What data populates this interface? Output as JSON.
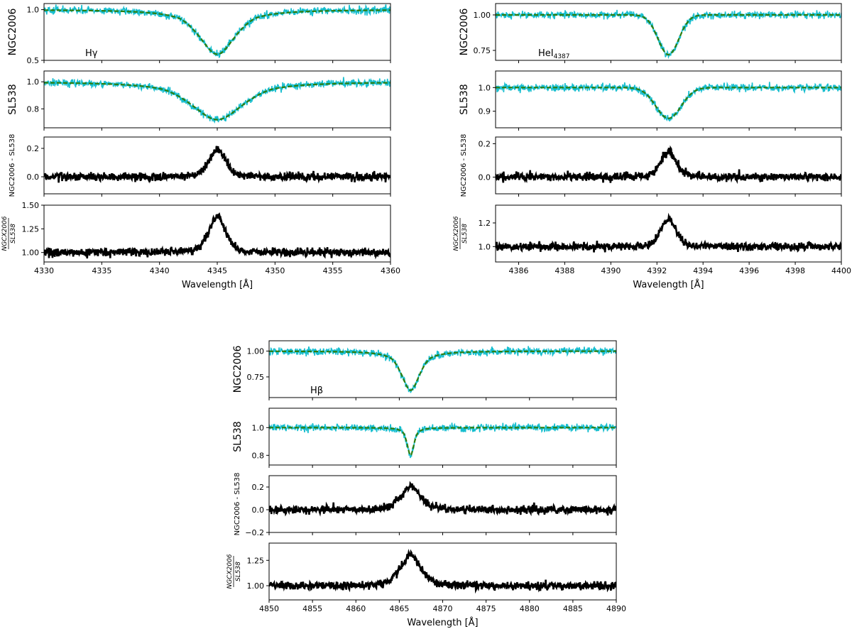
{
  "colors": {
    "observed": "#17becf",
    "model": "#2e7d0e",
    "residual": "#000000"
  },
  "chart_data": [
    {
      "type": "line",
      "line_label": "Hγ",
      "line_center": 4345.0,
      "xlim": [
        4330,
        4360
      ],
      "xticks": [
        "4330",
        "4335",
        "4340",
        "4345",
        "4350",
        "4355",
        "4360"
      ],
      "xlabel": "Wavelength [Å]",
      "panels": [
        {
          "ylabel": "NGC2006",
          "ylim": [
            0.5,
            1.06
          ],
          "yticks": [
            "0.5",
            "1.0"
          ],
          "series": [
            {
              "kind": "observed"
            },
            {
              "kind": "model"
            }
          ],
          "depth": 0.44,
          "width": 1.8
        },
        {
          "ylabel": "SL538",
          "ylim": [
            0.66,
            1.08
          ],
          "yticks": [
            "0.8",
            "1.0"
          ],
          "series": [
            {
              "kind": "observed"
            },
            {
              "kind": "model"
            }
          ],
          "depth": 0.28,
          "width": 2.6
        },
        {
          "ylabel": "NGC2006 - SL538",
          "ylim": [
            -0.12,
            0.28
          ],
          "yticks": [
            "0.0",
            "0.2"
          ],
          "series": [
            {
              "kind": "residual"
            }
          ],
          "peak": 0.19
        },
        {
          "ylabel": "NGCX2006 / SL538",
          "ylim": [
            0.9,
            1.5
          ],
          "yticks": [
            "1.00",
            "1.25",
            "1.50"
          ],
          "series": [
            {
              "kind": "residual"
            }
          ],
          "peak": 0.38
        }
      ]
    },
    {
      "type": "line",
      "line_label": "HeI",
      "line_label_sub": "4387",
      "line_center": 4392.5,
      "xlim": [
        4385,
        4400
      ],
      "xticks": [
        "4386",
        "4388",
        "4390",
        "4392",
        "4394",
        "4396",
        "4398",
        "4400"
      ],
      "xlabel": "Wavelength [Å]",
      "panels": [
        {
          "ylabel": "NGC2006",
          "ylim": [
            0.68,
            1.08
          ],
          "yticks": [
            "0.75",
            "1.00"
          ],
          "series": [
            {
              "kind": "observed"
            },
            {
              "kind": "model"
            }
          ],
          "depth": 0.28,
          "width": 0.45
        },
        {
          "ylabel": "SL538",
          "ylim": [
            0.83,
            1.07
          ],
          "yticks": [
            "0.9",
            "1.0"
          ],
          "series": [
            {
              "kind": "observed"
            },
            {
              "kind": "model"
            }
          ],
          "depth": 0.13,
          "width": 0.55
        },
        {
          "ylabel": "NGC2006 - SL538",
          "ylim": [
            -0.1,
            0.24
          ],
          "yticks": [
            "0.0",
            "0.2"
          ],
          "series": [
            {
              "kind": "residual"
            }
          ],
          "peak": 0.16
        },
        {
          "ylabel": "NGCX2006 / SL538",
          "ylim": [
            0.87,
            1.35
          ],
          "yticks": [
            "1.0",
            "1.2"
          ],
          "series": [
            {
              "kind": "residual"
            }
          ],
          "peak": 0.24
        }
      ]
    },
    {
      "type": "line",
      "line_label": "Hβ",
      "line_center": 4866.3,
      "xlim": [
        4850,
        4890
      ],
      "xticks": [
        "4850",
        "4855",
        "4860",
        "4865",
        "4870",
        "4875",
        "4880",
        "4885",
        "4890"
      ],
      "xlabel": "Wavelength [Å]",
      "panels": [
        {
          "ylabel": "NGC2006",
          "ylim": [
            0.55,
            1.1
          ],
          "yticks": [
            "0.75",
            "1.00"
          ],
          "series": [
            {
              "kind": "observed"
            },
            {
              "kind": "model"
            }
          ],
          "depth": 0.38,
          "width": 1.2
        },
        {
          "ylabel": "SL538",
          "ylim": [
            0.73,
            1.14
          ],
          "yticks": [
            "0.8",
            "1.0"
          ],
          "series": [
            {
              "kind": "observed"
            },
            {
              "kind": "model"
            }
          ],
          "depth": 0.2,
          "width": 0.45
        },
        {
          "ylabel": "NGC2006 - SL538",
          "ylim": [
            -0.2,
            0.3
          ],
          "yticks": [
            "−0.2",
            "0.0",
            "0.2"
          ],
          "series": [
            {
              "kind": "residual"
            }
          ],
          "peak": 0.2
        },
        {
          "ylabel": "NGCX2006 / SL538",
          "ylim": [
            0.86,
            1.42
          ],
          "yticks": [
            "1.00",
            "1.25"
          ],
          "series": [
            {
              "kind": "residual"
            }
          ],
          "peak": 0.3
        }
      ]
    }
  ]
}
